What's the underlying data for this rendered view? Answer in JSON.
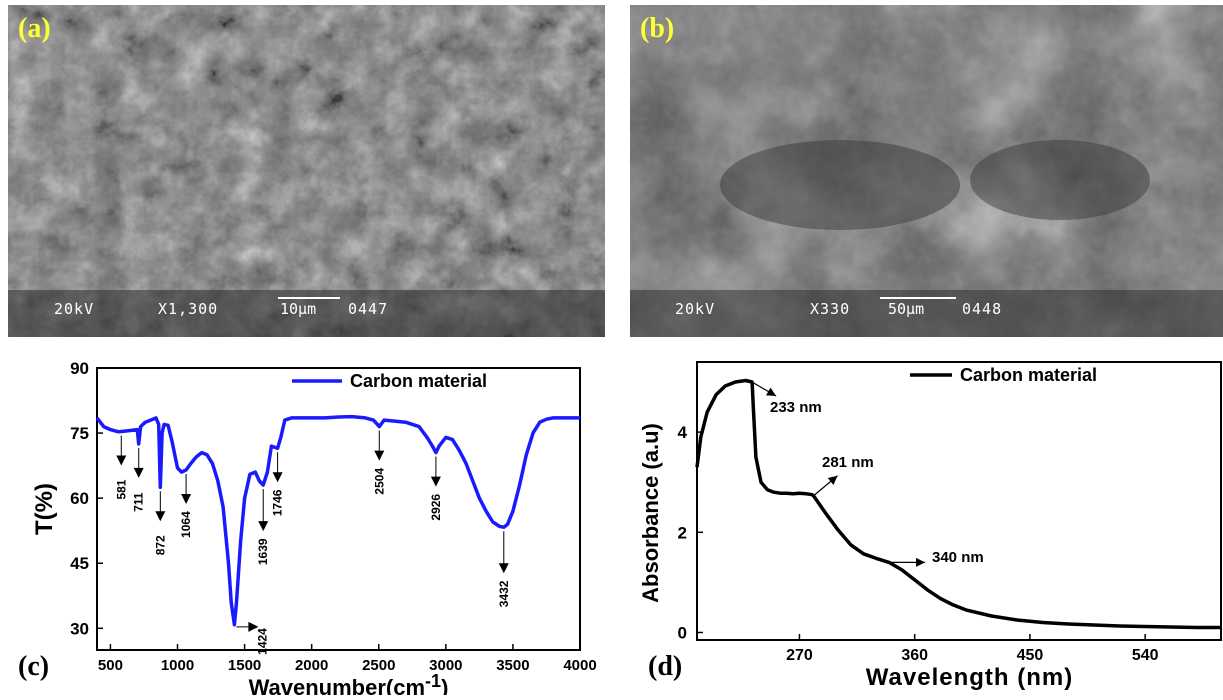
{
  "panels": {
    "a": {
      "label": "(a)",
      "scale_bar_text": "10µm",
      "info": [
        "20kV",
        "X1,300",
        "0447"
      ]
    },
    "b": {
      "label": "(b)",
      "scale_bar_text": "50µm",
      "info": [
        "20kV",
        "X330",
        "0448"
      ]
    },
    "c": {
      "label": "(c)"
    },
    "d": {
      "label": "(d)"
    }
  },
  "colors": {
    "ftir_line": "#1a1aff",
    "uv_line": "#000000",
    "panel_label": "#ffff33",
    "sem_text": "#ffffff"
  },
  "chart_data": [
    {
      "type": "line",
      "xlabel": "Wavenumber(cm",
      "xlabel_sup": "-1",
      "xlabel_close": ")",
      "ylabel": "T(%)",
      "xlim": [
        400,
        4000
      ],
      "ylim": [
        25,
        90
      ],
      "xticks": [
        500,
        1000,
        1500,
        2000,
        2500,
        3000,
        3500,
        4000
      ],
      "yticks": [
        30,
        45,
        60,
        75,
        90
      ],
      "grid": false,
      "legend": "top-center",
      "series": [
        {
          "name": "Carbon material",
          "x": [
            400,
            450,
            500,
            560,
            600,
            650,
            700,
            711,
            725,
            760,
            800,
            840,
            860,
            872,
            885,
            900,
            930,
            960,
            1000,
            1030,
            1064,
            1100,
            1140,
            1180,
            1220,
            1260,
            1300,
            1340,
            1380,
            1400,
            1424,
            1440,
            1470,
            1500,
            1540,
            1580,
            1610,
            1639,
            1670,
            1700,
            1746,
            1770,
            1800,
            1850,
            1900,
            2000,
            2100,
            2200,
            2300,
            2400,
            2460,
            2504,
            2540,
            2600,
            2700,
            2800,
            2860,
            2900,
            2926,
            2950,
            3000,
            3050,
            3100,
            3150,
            3200,
            3250,
            3300,
            3350,
            3400,
            3432,
            3460,
            3500,
            3550,
            3600,
            3650,
            3700,
            3750,
            3800,
            3900,
            4000
          ],
          "y": [
            78.5,
            76.5,
            75.8,
            75.3,
            75.4,
            75.6,
            75.8,
            72.5,
            76.5,
            77.5,
            78.0,
            78.5,
            77.0,
            62.5,
            75.0,
            77.0,
            76.8,
            73.0,
            67.0,
            66.0,
            66.5,
            68.0,
            69.5,
            70.5,
            70.0,
            68.0,
            64.0,
            58.0,
            45.0,
            36.0,
            30.8,
            36.0,
            50.0,
            60.0,
            65.5,
            66.0,
            64.0,
            63.0,
            66.0,
            72.0,
            71.5,
            74.0,
            78.0,
            78.5,
            78.5,
            78.5,
            78.5,
            78.7,
            78.8,
            78.5,
            78.0,
            76.5,
            78.0,
            77.8,
            77.5,
            76.5,
            74.0,
            72.0,
            70.5,
            72.0,
            74.0,
            73.5,
            71.0,
            68.0,
            64.0,
            60.0,
            57.0,
            54.5,
            53.5,
            53.3,
            54.0,
            57.0,
            63.0,
            70.0,
            75.0,
            77.5,
            78.2,
            78.5,
            78.5,
            78.5
          ]
        }
      ],
      "annotations": [
        "581",
        "711",
        "872",
        "1064",
        "1424",
        "1639",
        "1746",
        "2504",
        "2926",
        "3432"
      ],
      "annotation_x": [
        581,
        711,
        872,
        1064,
        1424,
        1639,
        1746,
        2504,
        2926,
        3432
      ]
    },
    {
      "type": "line",
      "xlabel": "Wavelength (nm)",
      "ylabel": "Absorbance (a.u)",
      "xlim": [
        190,
        600
      ],
      "ylim": [
        -0.15,
        5.4
      ],
      "xticks": [
        270,
        360,
        450,
        540
      ],
      "yticks": [
        0,
        2,
        4
      ],
      "grid": false,
      "legend": "top-right",
      "series": [
        {
          "name": "Carbon material",
          "x": [
            190,
            193,
            198,
            205,
            212,
            220,
            228,
            233,
            234,
            236,
            240,
            245,
            250,
            255,
            260,
            265,
            270,
            275,
            280,
            281,
            290,
            300,
            310,
            320,
            330,
            340,
            350,
            360,
            370,
            380,
            390,
            400,
            420,
            440,
            460,
            480,
            500,
            520,
            540,
            560,
            580,
            600
          ],
          "y": [
            3.3,
            3.9,
            4.4,
            4.75,
            4.92,
            5.0,
            5.03,
            5.0,
            4.5,
            3.5,
            3.0,
            2.85,
            2.8,
            2.78,
            2.78,
            2.77,
            2.78,
            2.77,
            2.75,
            2.73,
            2.4,
            2.05,
            1.75,
            1.57,
            1.48,
            1.4,
            1.25,
            1.05,
            0.85,
            0.68,
            0.55,
            0.45,
            0.33,
            0.25,
            0.2,
            0.17,
            0.15,
            0.13,
            0.12,
            0.11,
            0.1,
            0.1
          ]
        }
      ],
      "annotations": [
        "233 nm",
        "281 nm",
        "340 nm"
      ],
      "annotation_x": [
        233,
        281,
        340
      ]
    }
  ]
}
